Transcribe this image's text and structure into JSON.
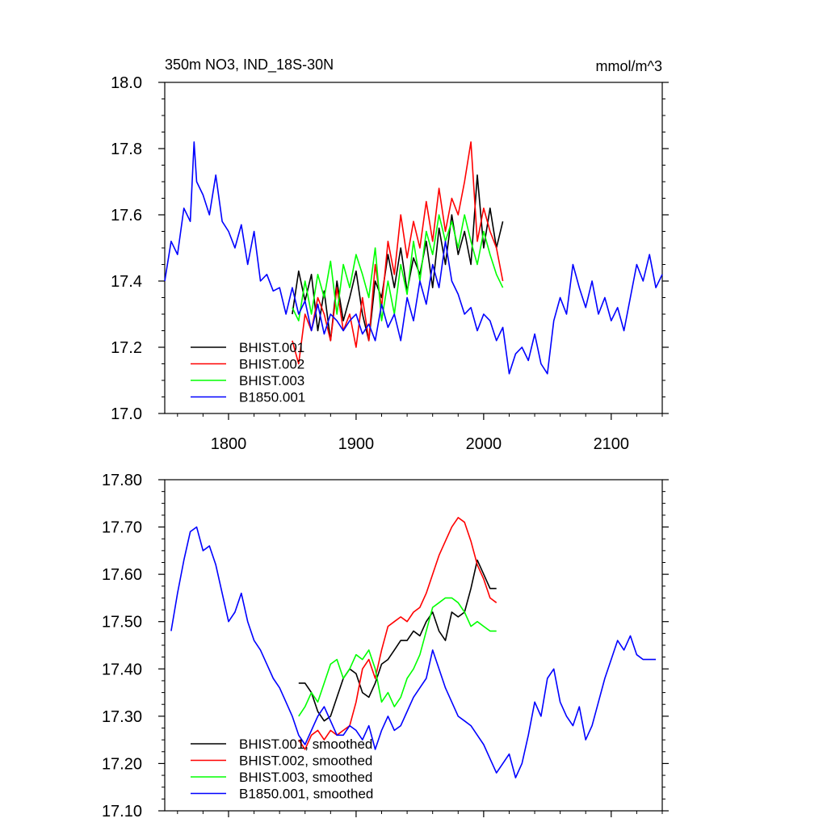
{
  "chart_data": [
    {
      "type": "line",
      "title_left": "350m NO3, IND_18S-30N",
      "title_right": "mmol/m^3",
      "xlim": [
        1750,
        2140
      ],
      "ylim": [
        17.0,
        18.0
      ],
      "x_ticks": [
        1800,
        1900,
        2000,
        2100
      ],
      "x_tick_labels": [
        "1800",
        "1900",
        "2000",
        "2100"
      ],
      "y_ticks": [
        17.0,
        17.2,
        17.4,
        17.6,
        17.8,
        18.0
      ],
      "y_tick_labels": [
        "17.0",
        "17.2",
        "17.4",
        "17.6",
        "17.8",
        "18.0"
      ],
      "legend_position": "bottom-left",
      "grid": false,
      "series": [
        {
          "name": "BHIST.001",
          "color": "#000000",
          "x": [
            1850,
            1855,
            1860,
            1865,
            1870,
            1875,
            1880,
            1885,
            1890,
            1895,
            1900,
            1905,
            1910,
            1915,
            1920,
            1925,
            1930,
            1935,
            1940,
            1945,
            1950,
            1955,
            1960,
            1965,
            1970,
            1975,
            1980,
            1985,
            1990,
            1995,
            2000,
            2005,
            2010,
            2015
          ],
          "y": [
            17.3,
            17.43,
            17.34,
            17.42,
            17.25,
            17.37,
            17.22,
            17.4,
            17.28,
            17.35,
            17.43,
            17.3,
            17.22,
            17.4,
            17.35,
            17.48,
            17.38,
            17.5,
            17.37,
            17.47,
            17.42,
            17.52,
            17.38,
            17.56,
            17.45,
            17.6,
            17.48,
            17.55,
            17.45,
            17.72,
            17.5,
            17.62,
            17.5,
            17.58
          ]
        },
        {
          "name": "BHIST.002",
          "color": "#ff0000",
          "x": [
            1850,
            1855,
            1860,
            1865,
            1870,
            1875,
            1880,
            1885,
            1890,
            1895,
            1900,
            1905,
            1910,
            1915,
            1920,
            1925,
            1930,
            1935,
            1940,
            1945,
            1950,
            1955,
            1960,
            1965,
            1970,
            1975,
            1980,
            1985,
            1990,
            1995,
            2000,
            2005,
            2010,
            2015
          ],
          "y": [
            17.22,
            17.15,
            17.3,
            17.25,
            17.35,
            17.3,
            17.22,
            17.38,
            17.25,
            17.3,
            17.2,
            17.35,
            17.22,
            17.45,
            17.32,
            17.52,
            17.42,
            17.6,
            17.47,
            17.58,
            17.5,
            17.64,
            17.52,
            17.68,
            17.55,
            17.65,
            17.6,
            17.7,
            17.82,
            17.52,
            17.62,
            17.55,
            17.5,
            17.4
          ]
        },
        {
          "name": "BHIST.003",
          "color": "#00ff00",
          "x": [
            1850,
            1855,
            1860,
            1865,
            1870,
            1875,
            1880,
            1885,
            1890,
            1895,
            1900,
            1905,
            1910,
            1915,
            1920,
            1925,
            1930,
            1935,
            1940,
            1945,
            1950,
            1955,
            1960,
            1965,
            1970,
            1975,
            1980,
            1985,
            1990,
            1995,
            2000,
            2005,
            2010,
            2015
          ],
          "y": [
            17.32,
            17.28,
            17.4,
            17.3,
            17.42,
            17.35,
            17.46,
            17.3,
            17.45,
            17.38,
            17.48,
            17.42,
            17.35,
            17.5,
            17.28,
            17.4,
            17.3,
            17.45,
            17.36,
            17.52,
            17.4,
            17.55,
            17.48,
            17.6,
            17.52,
            17.58,
            17.5,
            17.6,
            17.52,
            17.45,
            17.55,
            17.48,
            17.42,
            17.38
          ]
        },
        {
          "name": "B1850.001",
          "color": "#0000ff",
          "x": [
            1750,
            1755,
            1760,
            1765,
            1770,
            1773,
            1775,
            1780,
            1785,
            1790,
            1795,
            1800,
            1805,
            1810,
            1815,
            1820,
            1825,
            1830,
            1835,
            1840,
            1845,
            1850,
            1855,
            1860,
            1865,
            1870,
            1875,
            1880,
            1885,
            1890,
            1895,
            1900,
            1905,
            1910,
            1915,
            1920,
            1925,
            1930,
            1935,
            1940,
            1945,
            1950,
            1955,
            1960,
            1965,
            1970,
            1975,
            1980,
            1985,
            1990,
            1995,
            2000,
            2005,
            2010,
            2015,
            2020,
            2025,
            2030,
            2035,
            2040,
            2045,
            2050,
            2055,
            2060,
            2065,
            2070,
            2075,
            2080,
            2085,
            2090,
            2095,
            2100,
            2105,
            2110,
            2115,
            2120,
            2125,
            2130,
            2135,
            2140
          ],
          "y": [
            17.4,
            17.52,
            17.48,
            17.62,
            17.58,
            17.82,
            17.7,
            17.66,
            17.6,
            17.72,
            17.58,
            17.55,
            17.5,
            17.57,
            17.45,
            17.55,
            17.4,
            17.42,
            17.37,
            17.38,
            17.3,
            17.38,
            17.3,
            17.34,
            17.25,
            17.33,
            17.24,
            17.3,
            17.28,
            17.25,
            17.28,
            17.3,
            17.24,
            17.27,
            17.22,
            17.33,
            17.26,
            17.3,
            17.22,
            17.35,
            17.28,
            17.4,
            17.33,
            17.45,
            17.38,
            17.52,
            17.4,
            17.36,
            17.3,
            17.32,
            17.25,
            17.3,
            17.28,
            17.22,
            17.26,
            17.12,
            17.18,
            17.2,
            17.16,
            17.24,
            17.15,
            17.12,
            17.28,
            17.35,
            17.3,
            17.45,
            17.38,
            17.32,
            17.4,
            17.3,
            17.35,
            17.28,
            17.32,
            17.25,
            17.35,
            17.45,
            17.4,
            17.48,
            17.38,
            17.42
          ]
        }
      ]
    },
    {
      "type": "line",
      "xlim": [
        1750,
        2140
      ],
      "ylim": [
        17.1,
        17.8
      ],
      "x_ticks": [
        1800,
        1900,
        2000,
        2100
      ],
      "y_ticks": [
        17.1,
        17.2,
        17.3,
        17.4,
        17.5,
        17.6,
        17.7,
        17.8
      ],
      "y_tick_labels": [
        "17.10",
        "17.20",
        "17.30",
        "17.40",
        "17.50",
        "17.60",
        "17.70",
        "17.80"
      ],
      "legend_position": "bottom-left",
      "grid": false,
      "series": [
        {
          "name": "BHIST.001, smoothed",
          "color": "#000000",
          "x": [
            1855,
            1860,
            1865,
            1870,
            1875,
            1880,
            1885,
            1890,
            1895,
            1900,
            1905,
            1910,
            1915,
            1920,
            1925,
            1930,
            1935,
            1940,
            1945,
            1950,
            1955,
            1960,
            1965,
            1970,
            1975,
            1980,
            1985,
            1990,
            1995,
            2000,
            2005,
            2010
          ],
          "y": [
            17.37,
            17.37,
            17.35,
            17.31,
            17.29,
            17.3,
            17.34,
            17.38,
            17.4,
            17.39,
            17.35,
            17.34,
            17.37,
            17.41,
            17.42,
            17.44,
            17.46,
            17.46,
            17.48,
            17.47,
            17.5,
            17.52,
            17.48,
            17.46,
            17.52,
            17.51,
            17.52,
            17.57,
            17.63,
            17.6,
            17.57,
            17.57
          ]
        },
        {
          "name": "BHIST.002, smoothed",
          "color": "#ff0000",
          "x": [
            1855,
            1860,
            1865,
            1870,
            1875,
            1880,
            1885,
            1890,
            1895,
            1900,
            1905,
            1910,
            1915,
            1920,
            1925,
            1930,
            1935,
            1940,
            1945,
            1950,
            1955,
            1960,
            1965,
            1970,
            1975,
            1980,
            1985,
            1990,
            1995,
            2000,
            2005,
            2010
          ],
          "y": [
            17.25,
            17.23,
            17.26,
            17.27,
            17.25,
            17.27,
            17.26,
            17.27,
            17.28,
            17.33,
            17.4,
            17.42,
            17.38,
            17.44,
            17.49,
            17.5,
            17.51,
            17.5,
            17.52,
            17.53,
            17.56,
            17.6,
            17.64,
            17.67,
            17.7,
            17.72,
            17.71,
            17.67,
            17.62,
            17.59,
            17.55,
            17.54
          ]
        },
        {
          "name": "BHIST.003, smoothed",
          "color": "#00ff00",
          "x": [
            1855,
            1860,
            1865,
            1870,
            1875,
            1880,
            1885,
            1890,
            1895,
            1900,
            1905,
            1910,
            1915,
            1920,
            1925,
            1930,
            1935,
            1940,
            1945,
            1950,
            1955,
            1960,
            1965,
            1970,
            1975,
            1980,
            1985,
            1990,
            1995,
            2000,
            2005,
            2010
          ],
          "y": [
            17.3,
            17.32,
            17.35,
            17.33,
            17.37,
            17.41,
            17.42,
            17.38,
            17.4,
            17.43,
            17.42,
            17.44,
            17.4,
            17.33,
            17.35,
            17.32,
            17.34,
            17.38,
            17.4,
            17.43,
            17.48,
            17.53,
            17.54,
            17.55,
            17.55,
            17.54,
            17.52,
            17.49,
            17.5,
            17.49,
            17.48,
            17.48
          ]
        },
        {
          "name": "B1850.001, smoothed",
          "color": "#0000ff",
          "x": [
            1755,
            1760,
            1765,
            1770,
            1775,
            1780,
            1785,
            1790,
            1795,
            1800,
            1805,
            1810,
            1815,
            1820,
            1825,
            1830,
            1835,
            1840,
            1845,
            1850,
            1855,
            1860,
            1865,
            1870,
            1875,
            1880,
            1885,
            1890,
            1895,
            1900,
            1905,
            1910,
            1915,
            1920,
            1925,
            1930,
            1935,
            1940,
            1945,
            1950,
            1955,
            1960,
            1965,
            1970,
            1975,
            1980,
            1985,
            1990,
            1995,
            2000,
            2005,
            2010,
            2015,
            2020,
            2025,
            2030,
            2035,
            2040,
            2045,
            2050,
            2055,
            2060,
            2065,
            2070,
            2075,
            2080,
            2085,
            2090,
            2095,
            2100,
            2105,
            2110,
            2115,
            2120,
            2125,
            2130,
            2135
          ],
          "y": [
            17.48,
            17.56,
            17.63,
            17.69,
            17.7,
            17.65,
            17.66,
            17.62,
            17.56,
            17.5,
            17.52,
            17.56,
            17.5,
            17.46,
            17.44,
            17.41,
            17.38,
            17.36,
            17.33,
            17.3,
            17.26,
            17.24,
            17.27,
            17.3,
            17.32,
            17.29,
            17.26,
            17.26,
            17.28,
            17.27,
            17.25,
            17.28,
            17.23,
            17.27,
            17.3,
            17.27,
            17.28,
            17.31,
            17.34,
            17.36,
            17.38,
            17.44,
            17.4,
            17.36,
            17.33,
            17.3,
            17.29,
            17.28,
            17.26,
            17.24,
            17.21,
            17.18,
            17.2,
            17.22,
            17.17,
            17.2,
            17.26,
            17.33,
            17.3,
            17.38,
            17.4,
            17.33,
            17.3,
            17.28,
            17.32,
            17.25,
            17.28,
            17.33,
            17.38,
            17.42,
            17.46,
            17.44,
            17.47,
            17.43,
            17.42,
            17.42,
            17.42
          ]
        }
      ]
    }
  ]
}
